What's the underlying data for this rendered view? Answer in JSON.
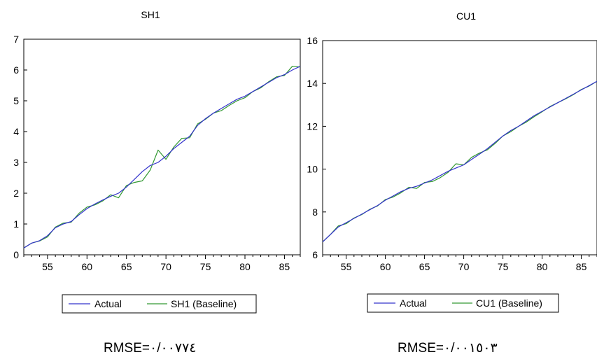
{
  "chart_data": [
    {
      "type": "line",
      "title": "SH1",
      "xlim": [
        52,
        87
      ],
      "ylim": [
        0,
        7
      ],
      "xticks": [
        55,
        60,
        65,
        70,
        75,
        80,
        85
      ],
      "yticks": [
        0,
        1,
        2,
        3,
        4,
        5,
        6,
        7
      ],
      "grid": false,
      "legend_position": "bottom",
      "series": [
        {
          "name": "Actual",
          "color": "#3333cc",
          "x": [
            52,
            53,
            54,
            55,
            56,
            57,
            58,
            59,
            60,
            61,
            62,
            63,
            64,
            65,
            66,
            67,
            68,
            69,
            70,
            71,
            72,
            73,
            74,
            75,
            76,
            77,
            78,
            79,
            80,
            81,
            82,
            83,
            84,
            85,
            86,
            87
          ],
          "values": [
            0.22,
            0.38,
            0.46,
            0.62,
            0.88,
            1.0,
            1.08,
            1.3,
            1.5,
            1.65,
            1.78,
            1.9,
            2.0,
            2.2,
            2.45,
            2.7,
            2.9,
            3.0,
            3.2,
            3.45,
            3.65,
            3.85,
            4.2,
            4.42,
            4.6,
            4.75,
            4.9,
            5.05,
            5.15,
            5.3,
            5.45,
            5.6,
            5.75,
            5.85,
            6.0,
            6.12
          ]
        },
        {
          "name": "SH1 (Baseline)",
          "color": "#339933",
          "x": [
            52,
            53,
            54,
            55,
            56,
            57,
            58,
            59,
            60,
            61,
            62,
            63,
            64,
            65,
            66,
            67,
            68,
            69,
            70,
            71,
            72,
            73,
            74,
            75,
            76,
            77,
            78,
            79,
            80,
            81,
            82,
            83,
            84,
            85,
            86,
            87
          ],
          "values": [
            0.22,
            0.38,
            0.45,
            0.58,
            0.9,
            1.03,
            1.06,
            1.35,
            1.55,
            1.62,
            1.75,
            1.95,
            1.85,
            2.25,
            2.35,
            2.4,
            2.75,
            3.4,
            3.1,
            3.5,
            3.78,
            3.8,
            4.25,
            4.4,
            4.6,
            4.68,
            4.85,
            5.0,
            5.1,
            5.3,
            5.42,
            5.62,
            5.78,
            5.82,
            6.12,
            6.1
          ]
        }
      ]
    },
    {
      "type": "line",
      "title": "CU1",
      "xlim": [
        52,
        87
      ],
      "ylim": [
        6,
        16
      ],
      "xticks": [
        55,
        60,
        65,
        70,
        75,
        80,
        85
      ],
      "yticks": [
        6,
        8,
        10,
        12,
        14,
        16
      ],
      "grid": false,
      "legend_position": "bottom",
      "series": [
        {
          "name": "Actual",
          "color": "#3333cc",
          "x": [
            52,
            53,
            54,
            55,
            56,
            57,
            58,
            59,
            60,
            61,
            62,
            63,
            64,
            65,
            66,
            67,
            68,
            69,
            70,
            71,
            72,
            73,
            74,
            75,
            76,
            77,
            78,
            79,
            80,
            81,
            82,
            83,
            84,
            85,
            86,
            87
          ],
          "values": [
            6.6,
            6.95,
            7.3,
            7.5,
            7.7,
            7.9,
            8.1,
            8.3,
            8.55,
            8.75,
            8.95,
            9.1,
            9.2,
            9.35,
            9.5,
            9.7,
            9.9,
            10.05,
            10.2,
            10.45,
            10.7,
            10.95,
            11.25,
            11.55,
            11.8,
            12.0,
            12.25,
            12.5,
            12.7,
            12.9,
            13.1,
            13.3,
            13.5,
            13.7,
            13.9,
            14.1
          ]
        },
        {
          "name": "CU1 (Baseline)",
          "color": "#339933",
          "x": [
            52,
            53,
            54,
            55,
            56,
            57,
            58,
            59,
            60,
            61,
            62,
            63,
            64,
            65,
            66,
            67,
            68,
            69,
            70,
            71,
            72,
            73,
            74,
            75,
            76,
            77,
            78,
            79,
            80,
            81,
            82,
            83,
            84,
            85,
            86,
            87
          ],
          "values": [
            6.6,
            6.95,
            7.35,
            7.45,
            7.72,
            7.88,
            8.12,
            8.28,
            8.58,
            8.7,
            8.9,
            9.15,
            9.1,
            9.38,
            9.42,
            9.6,
            9.85,
            10.25,
            10.2,
            10.55,
            10.75,
            10.9,
            11.2,
            11.55,
            11.75,
            12.0,
            12.2,
            12.45,
            12.68,
            12.92,
            13.1,
            13.28,
            13.48,
            13.72,
            13.88,
            14.1
          ]
        }
      ]
    }
  ],
  "captions": {
    "left_rmse": "RMSE=٠/٠٠٧٧٤",
    "right_rmse": "RMSE=٠/٠٠١٥٠٣"
  }
}
